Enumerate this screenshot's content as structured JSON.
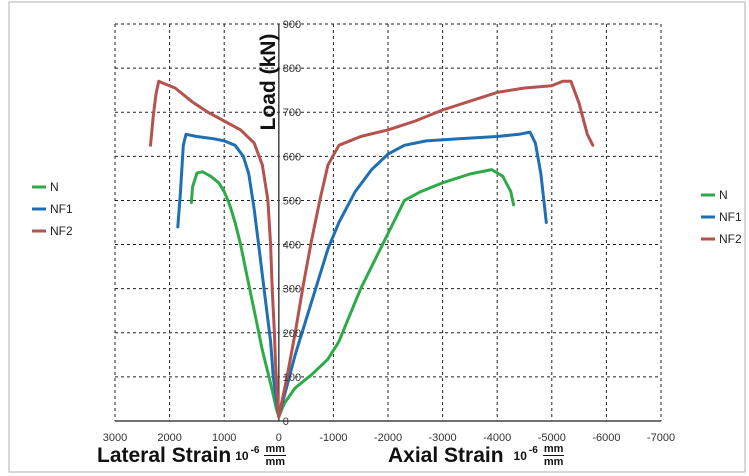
{
  "chart_data": {
    "type": "line",
    "ylabel": "Load (kN)",
    "y_ticks": [
      "900",
      "800",
      "700",
      "600",
      "500",
      "400",
      "300",
      "200",
      "100",
      "0"
    ],
    "x_ticks": [
      "3000",
      "2000",
      "1000",
      "0",
      "-1000",
      "-2000",
      "-3000",
      "-4000",
      "-5000",
      "-6000",
      "-7000"
    ],
    "xlabel_left": {
      "text": "Lateral Strain",
      "unit_prefix": "10",
      "unit_exp": "-6",
      "unit_num": "mm",
      "unit_den": "mm"
    },
    "xlabel_right": {
      "text": "Axial Strain",
      "unit_prefix": "10",
      "unit_exp": "-6",
      "unit_num": "mm",
      "unit_den": "mm"
    },
    "xlim": [
      3000,
      -7000
    ],
    "ylim": [
      0,
      900
    ],
    "grid": true,
    "legends": [
      {
        "placement": "left",
        "entries": [
          "N",
          "NF1",
          "NF2"
        ]
      },
      {
        "placement": "right",
        "entries": [
          "N",
          "NF1",
          "NF2"
        ]
      }
    ],
    "series": [
      {
        "name": "N",
        "color": "#2faa4a",
        "lateral": [
          [
            0,
            10
          ],
          [
            50,
            30
          ],
          [
            120,
            70
          ],
          [
            200,
            110
          ],
          [
            300,
            160
          ],
          [
            400,
            220
          ],
          [
            500,
            280
          ],
          [
            600,
            340
          ],
          [
            700,
            400
          ],
          [
            800,
            450
          ],
          [
            900,
            490
          ],
          [
            1000,
            520
          ],
          [
            1100,
            540
          ],
          [
            1250,
            555
          ],
          [
            1400,
            565
          ],
          [
            1500,
            562
          ],
          [
            1580,
            530
          ],
          [
            1600,
            495
          ]
        ],
        "axial": [
          [
            0,
            10
          ],
          [
            -100,
            40
          ],
          [
            -300,
            75
          ],
          [
            -600,
            105
          ],
          [
            -900,
            140
          ],
          [
            -1100,
            180
          ],
          [
            -1300,
            240
          ],
          [
            -1500,
            300
          ],
          [
            -1700,
            350
          ],
          [
            -1900,
            400
          ],
          [
            -2100,
            450
          ],
          [
            -2300,
            500
          ],
          [
            -2600,
            520
          ],
          [
            -3000,
            540
          ],
          [
            -3500,
            560
          ],
          [
            -3900,
            570
          ],
          [
            -4100,
            555
          ],
          [
            -4250,
            520
          ],
          [
            -4300,
            490
          ]
        ]
      },
      {
        "name": "NF1",
        "color": "#1f6fb4",
        "lateral": [
          [
            0,
            10
          ],
          [
            50,
            50
          ],
          [
            100,
            100
          ],
          [
            150,
            180
          ],
          [
            250,
            280
          ],
          [
            350,
            380
          ],
          [
            450,
            480
          ],
          [
            550,
            560
          ],
          [
            650,
            600
          ],
          [
            800,
            625
          ],
          [
            1000,
            635
          ],
          [
            1200,
            640
          ],
          [
            1500,
            645
          ],
          [
            1700,
            650
          ],
          [
            1750,
            625
          ],
          [
            1800,
            520
          ],
          [
            1850,
            440
          ]
        ],
        "axial": [
          [
            0,
            10
          ],
          [
            -150,
            80
          ],
          [
            -300,
            150
          ],
          [
            -500,
            230
          ],
          [
            -700,
            310
          ],
          [
            -900,
            390
          ],
          [
            -1100,
            450
          ],
          [
            -1400,
            520
          ],
          [
            -1700,
            570
          ],
          [
            -2000,
            605
          ],
          [
            -2300,
            625
          ],
          [
            -2700,
            635
          ],
          [
            -3300,
            640
          ],
          [
            -4000,
            645
          ],
          [
            -4400,
            650
          ],
          [
            -4600,
            655
          ],
          [
            -4700,
            630
          ],
          [
            -4800,
            560
          ],
          [
            -4900,
            450
          ]
        ]
      },
      {
        "name": "NF2",
        "color": "#b5524e",
        "lateral": [
          [
            0,
            10
          ],
          [
            30,
            60
          ],
          [
            60,
            130
          ],
          [
            80,
            200
          ],
          [
            120,
            300
          ],
          [
            150,
            400
          ],
          [
            200,
            500
          ],
          [
            300,
            580
          ],
          [
            450,
            630
          ],
          [
            700,
            660
          ],
          [
            1000,
            680
          ],
          [
            1300,
            700
          ],
          [
            1600,
            725
          ],
          [
            1900,
            755
          ],
          [
            2100,
            765
          ],
          [
            2200,
            770
          ],
          [
            2250,
            740
          ],
          [
            2300,
            690
          ],
          [
            2350,
            625
          ]
        ],
        "axial": [
          [
            0,
            10
          ],
          [
            -150,
            100
          ],
          [
            -300,
            200
          ],
          [
            -450,
            310
          ],
          [
            -600,
            410
          ],
          [
            -750,
            500
          ],
          [
            -900,
            580
          ],
          [
            -1100,
            625
          ],
          [
            -1500,
            645
          ],
          [
            -2000,
            660
          ],
          [
            -2500,
            680
          ],
          [
            -3000,
            705
          ],
          [
            -3500,
            725
          ],
          [
            -4000,
            745
          ],
          [
            -4500,
            755
          ],
          [
            -5000,
            760
          ],
          [
            -5200,
            770
          ],
          [
            -5350,
            770
          ],
          [
            -5500,
            720
          ],
          [
            -5650,
            650
          ],
          [
            -5750,
            625
          ]
        ]
      }
    ]
  }
}
